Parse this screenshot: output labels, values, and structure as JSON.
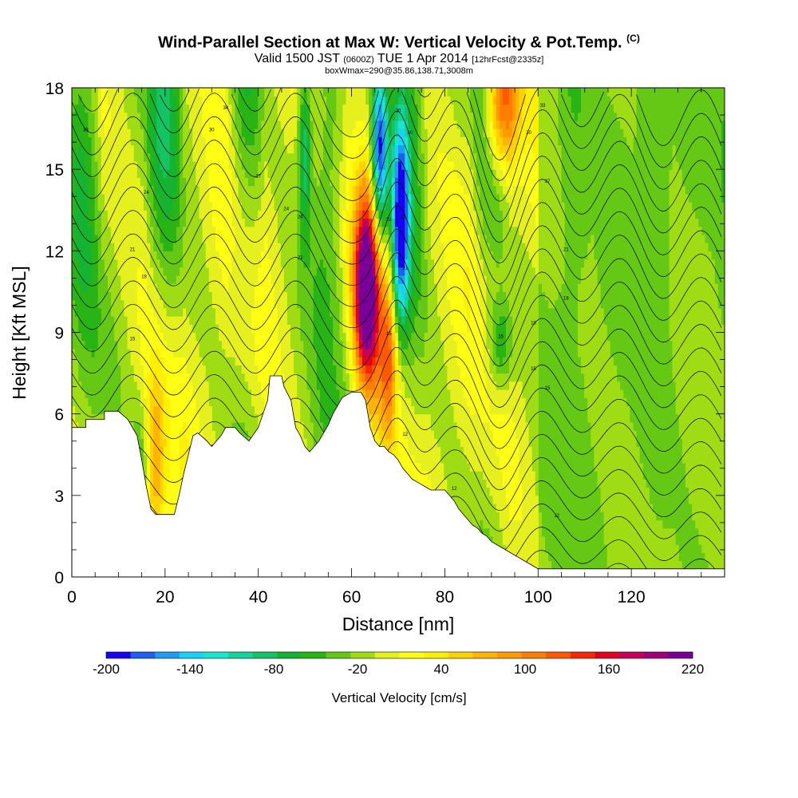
{
  "chart_data": {
    "type": "heatmap",
    "title": "Wind-Parallel Section at Max W: Vertical Velocity & Pot.Temp.",
    "title_suffix": "(C)",
    "subtitle_prefix": "Valid 1500 JST",
    "subtitle_small_1": "(0600Z)",
    "subtitle_main": "TUE 1 Apr 2014",
    "subtitle_small_2": "[12hrFcst@2335z]",
    "info": "boxWmax=290@35.86,138.71,3008m",
    "xlabel": "Distance [nm]",
    "ylabel": "Height [Kft MSL]",
    "xlim": [
      0,
      140
    ],
    "ylim": [
      0,
      18
    ],
    "x_ticks": [
      0,
      20,
      40,
      60,
      80,
      100,
      120
    ],
    "y_ticks": [
      0,
      3,
      6,
      9,
      12,
      15,
      18
    ],
    "colorbar": {
      "label": "Vertical Velocity [cm/s]",
      "min": -200,
      "max": 220,
      "step": 20,
      "tick_labels": [
        -200,
        -140,
        -80,
        -20,
        40,
        100,
        160,
        220
      ],
      "colors": [
        "#1a00f5",
        "#1e5ef0",
        "#1e9bf5",
        "#19d2f5",
        "#19e6cf",
        "#14d29b",
        "#14c364",
        "#14b432",
        "#28b414",
        "#64c814",
        "#a0dc14",
        "#e6f01e",
        "#ffff14",
        "#fff000",
        "#ffd200",
        "#ffb400",
        "#ff9b00",
        "#ff7d00",
        "#ff5a00",
        "#f52800",
        "#e1001e",
        "#c8005a",
        "#a00078",
        "#780096"
      ]
    },
    "terrain_profile": {
      "x": [
        0,
        3,
        3,
        7,
        7,
        10,
        12,
        14,
        15,
        16,
        17,
        18,
        19,
        22,
        23,
        24,
        25,
        26,
        27,
        29,
        30,
        32,
        33,
        35,
        36,
        38,
        40,
        42,
        42.5,
        45,
        45.5,
        47,
        48,
        49,
        50,
        51,
        52,
        53,
        54,
        55,
        56,
        57,
        58,
        60,
        62,
        63,
        64,
        65,
        66,
        67,
        68,
        69,
        70,
        71,
        72,
        73,
        74,
        75,
        76,
        77,
        78,
        79,
        80,
        81,
        82,
        83,
        84,
        85,
        86,
        87,
        88,
        89,
        90,
        91,
        92,
        93,
        94,
        95,
        96,
        97,
        98,
        99,
        100,
        101,
        102,
        140
      ],
      "height": [
        5.5,
        5.5,
        5.8,
        5.8,
        6.1,
        6.1,
        5.8,
        5.2,
        4.3,
        3.3,
        2.5,
        2.3,
        2.3,
        2.3,
        3.0,
        3.8,
        4.5,
        5.2,
        5.3,
        5.0,
        4.8,
        5.2,
        5.5,
        5.5,
        5.3,
        5.0,
        5.5,
        6.5,
        7.4,
        7.4,
        7.0,
        6.5,
        5.5,
        5.2,
        4.8,
        4.6,
        4.8,
        5.0,
        5.3,
        5.6,
        6.0,
        6.3,
        6.6,
        6.8,
        6.8,
        6.5,
        5.5,
        5.0,
        4.8,
        4.8,
        4.6,
        4.5,
        4.3,
        4.0,
        3.8,
        3.6,
        3.5,
        3.4,
        3.3,
        3.2,
        3.2,
        3.2,
        3.2,
        3.0,
        2.8,
        2.5,
        2.3,
        2.1,
        1.9,
        1.8,
        1.6,
        1.5,
        1.3,
        1.2,
        1.1,
        1.0,
        0.9,
        0.8,
        0.7,
        0.6,
        0.5,
        0.4,
        0.3,
        0.3,
        0.3,
        0.3
      ]
    },
    "contour_labels": [
      {
        "text": "34",
        "x": 33,
        "y": 17.2
      },
      {
        "text": "33",
        "x": 3,
        "y": 16.4
      },
      {
        "text": "30",
        "x": 30,
        "y": 16.4
      },
      {
        "text": "30",
        "x": 70,
        "y": 17.1
      },
      {
        "text": "30",
        "x": 72.5,
        "y": 16.3
      },
      {
        "text": "33",
        "x": 101,
        "y": 17.3
      },
      {
        "text": "30",
        "x": 98,
        "y": 16.3
      },
      {
        "text": "27",
        "x": 40,
        "y": 14.7
      },
      {
        "text": "24",
        "x": 16,
        "y": 14.1
      },
      {
        "text": "24",
        "x": 66,
        "y": 14.2
      },
      {
        "text": "27",
        "x": 102,
        "y": 14.5
      },
      {
        "text": "24",
        "x": 46,
        "y": 13.5
      },
      {
        "text": "24",
        "x": 49,
        "y": 13.2
      },
      {
        "text": "21",
        "x": 68,
        "y": 13.1
      },
      {
        "text": "21",
        "x": 71,
        "y": 13.2
      },
      {
        "text": "21",
        "x": 13,
        "y": 12.0
      },
      {
        "text": "21",
        "x": 49,
        "y": 11.7
      },
      {
        "text": "21",
        "x": 71.5,
        "y": 11.3
      },
      {
        "text": "21",
        "x": 106,
        "y": 12.0
      },
      {
        "text": "18",
        "x": 15.5,
        "y": 11.0
      },
      {
        "text": "18",
        "x": 106,
        "y": 10.2
      },
      {
        "text": "18",
        "x": 99,
        "y": 9.3
      },
      {
        "text": "15",
        "x": 92,
        "y": 8.8
      },
      {
        "text": "15",
        "x": 13,
        "y": 8.7
      },
      {
        "text": "15",
        "x": 68,
        "y": 8.9
      },
      {
        "text": "15",
        "x": 99,
        "y": 7.6
      },
      {
        "text": "15",
        "x": 102,
        "y": 6.9
      },
      {
        "text": "12",
        "x": 71.5,
        "y": 5.2
      },
      {
        "text": "12",
        "x": 82,
        "y": 3.2
      },
      {
        "text": "12",
        "x": 104,
        "y": 2.2
      }
    ]
  }
}
